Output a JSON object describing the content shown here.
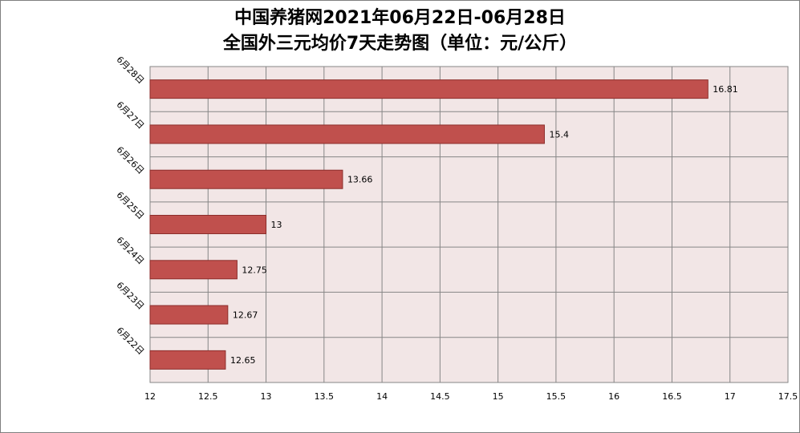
{
  "chart_data": {
    "type": "bar",
    "orientation": "horizontal",
    "title": "中国养猪网2021年06月22日-06月28日",
    "subtitle": "全国外三元均价7天走势图（单位：元/公斤）",
    "categories": [
      "6月28日",
      "6月27日",
      "6月26日",
      "6月25日",
      "6月24日",
      "6月23日",
      "6月22日"
    ],
    "values": [
      16.81,
      15.4,
      13.66,
      13,
      12.75,
      12.67,
      12.65
    ],
    "data_labels": [
      "16.81",
      "15.4",
      "13.66",
      "13",
      "12.75",
      "12.67",
      "12.65"
    ],
    "xlim": [
      12,
      17.5
    ],
    "xticks": [
      "12",
      "12.5",
      "13",
      "13.5",
      "14",
      "14.5",
      "15",
      "15.5",
      "16",
      "16.5",
      "17",
      "17.5"
    ],
    "grid": true,
    "colors": {
      "bar_fill": "#c0504d",
      "bar_stroke": "#8c2e2b",
      "plot_bg": "#f2e6e6",
      "grid": "#868686"
    }
  }
}
